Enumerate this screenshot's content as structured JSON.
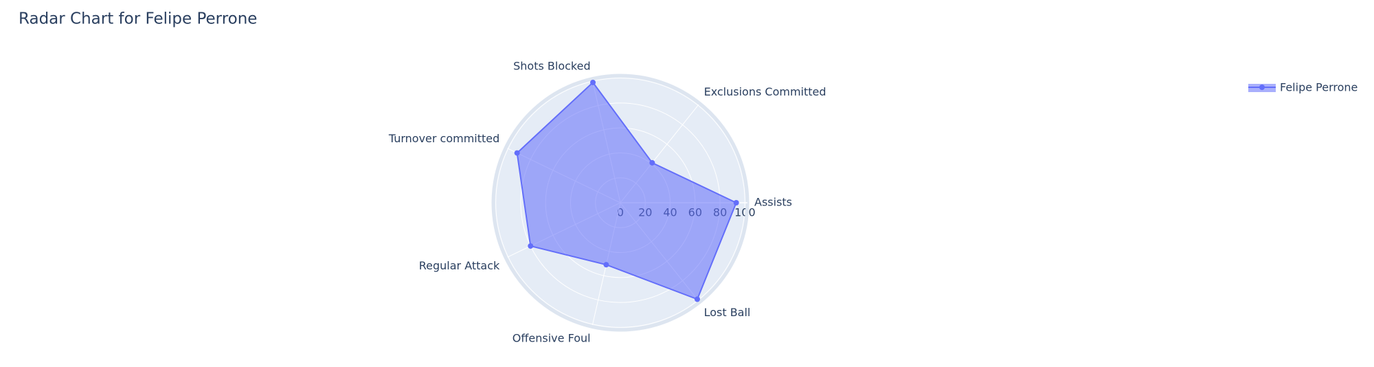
{
  "chart_data": {
    "type": "radar",
    "title": "Radar Chart for Felipe Perrone",
    "categories": [
      "Assists",
      "Exclusions Committed",
      "Shots Blocked",
      "Turnover committed",
      "Regular Attack",
      "Offensive Foul",
      "Lost Ball"
    ],
    "series": [
      {
        "name": "Felipe Perrone",
        "color": "#636efa",
        "values": [
          93,
          41,
          99,
          92,
          80,
          51,
          99
        ]
      }
    ],
    "rlim": [
      0,
      102
    ],
    "rticks": [
      0,
      20,
      40,
      60,
      80,
      100
    ],
    "grid": true,
    "legend": "top-right"
  }
}
